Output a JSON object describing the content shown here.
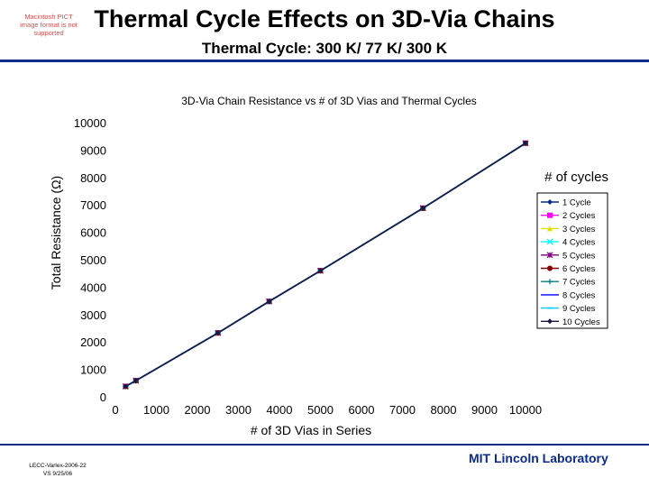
{
  "slide": {
    "title": "Thermal Cycle Effects on 3D-Via Chains",
    "subtitle": "Thermal Cycle: 300 K/ 77 K/ 300 K",
    "pict_note": "Macintosh PICT image format is not supported",
    "footer_left": "LECC-Varlex-2006-22 VS 9/25/06",
    "footer_brand": "MIT Lincoln Laboratory"
  },
  "colors": {
    "accent": "#0b2a8a"
  },
  "chart_data": {
    "type": "line",
    "title": "3D-Via Chain Resistance vs # of 3D Vias and Thermal Cycles",
    "xlabel": "# of 3D Vias in Series",
    "ylabel": "Total Resistance (Ω)",
    "xlim": [
      0,
      10000
    ],
    "ylim": [
      0,
      10000
    ],
    "xticks": [
      0,
      1000,
      2000,
      3000,
      4000,
      5000,
      6000,
      7000,
      8000,
      9000,
      10000
    ],
    "yticks": [
      0,
      1000,
      2000,
      3000,
      4000,
      5000,
      6000,
      7000,
      8000,
      9000,
      10000
    ],
    "grid": false,
    "legend_title": "# of cycles",
    "legend_position": "right",
    "x": [
      250,
      500,
      2500,
      3750,
      5000,
      7500,
      10000
    ],
    "series": [
      {
        "name": "1 Cycle",
        "color": "#0b2a8a",
        "marker": "diamond",
        "values": [
          380,
          590,
          2330,
          3480,
          4600,
          6880,
          9250
        ]
      },
      {
        "name": "2 Cycles",
        "color": "#ff00ff",
        "marker": "square",
        "values": [
          380,
          590,
          2330,
          3480,
          4600,
          6880,
          9250
        ]
      },
      {
        "name": "3 Cycles",
        "color": "#e0e000",
        "marker": "triangle",
        "values": [
          380,
          590,
          2330,
          3480,
          4600,
          6880,
          9250
        ]
      },
      {
        "name": "4 Cycles",
        "color": "#00ffff",
        "marker": "x",
        "values": [
          380,
          590,
          2330,
          3480,
          4600,
          6880,
          9250
        ]
      },
      {
        "name": "5 Cycles",
        "color": "#800080",
        "marker": "star",
        "values": [
          380,
          590,
          2330,
          3480,
          4600,
          6880,
          9250
        ]
      },
      {
        "name": "6 Cycles",
        "color": "#800000",
        "marker": "circle",
        "values": [
          380,
          590,
          2330,
          3480,
          4600,
          6880,
          9250
        ]
      },
      {
        "name": "7 Cycles",
        "color": "#008080",
        "marker": "plus",
        "values": [
          380,
          590,
          2330,
          3480,
          4600,
          6880,
          9250
        ]
      },
      {
        "name": "8 Cycles",
        "color": "#0000ff",
        "marker": "none",
        "values": [
          380,
          590,
          2330,
          3480,
          4600,
          6880,
          9250
        ]
      },
      {
        "name": "9 Cycles",
        "color": "#00ccff",
        "marker": "dash",
        "values": [
          380,
          590,
          2330,
          3480,
          4600,
          6880,
          9250
        ]
      },
      {
        "name": "10 Cycles",
        "color": "#1a1a40",
        "marker": "diamond",
        "values": [
          380,
          590,
          2330,
          3480,
          4600,
          6880,
          9250
        ]
      }
    ]
  }
}
